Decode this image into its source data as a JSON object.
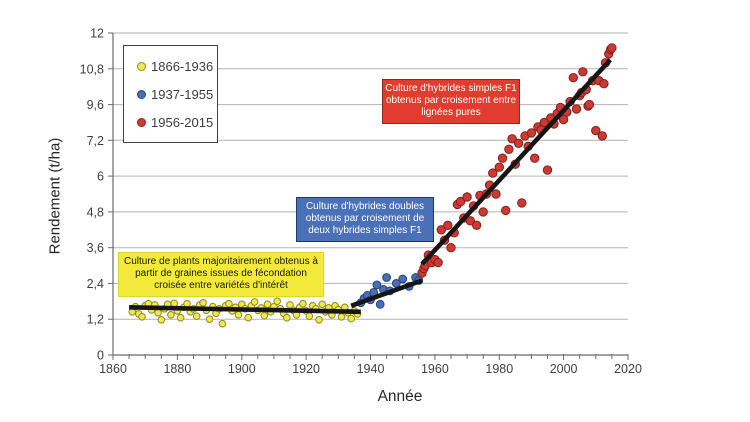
{
  "axes": {
    "x_title": "Année",
    "y_title": "Rendement (t/ha)",
    "x_tick_labels": [
      "1860",
      "1880",
      "1900",
      "1920",
      "1940",
      "1960",
      "1980",
      "2000",
      "2020"
    ],
    "y_tick_labels": [
      "0",
      "1,2",
      "2,4",
      "3,6",
      "4,8",
      "6",
      "7,2",
      "9,6",
      "10,8",
      "12"
    ]
  },
  "legend": {
    "items": [
      {
        "label": "1866-1936",
        "color": "#f1e84d",
        "stroke": "#8f8a26"
      },
      {
        "label": "1937-1955",
        "color": "#4a6db5",
        "stroke": "#26437e"
      },
      {
        "label": "1956-2015",
        "color": "#cc3a33",
        "stroke": "#82211d"
      }
    ]
  },
  "annotations": [
    {
      "id": "period-1866-1936",
      "text": "Culture de plants majoritairement obtenus à partir de graines issues de fécondation croisée entre variétés d'intérêt",
      "bg": "#f3e93b",
      "border": "#e2d729",
      "text_color": "#1a1a1a"
    },
    {
      "id": "period-1937-1955",
      "text": "Culture d'hybrides doubles obtenus par croisement de deux hybrides simples F1",
      "bg": "#4a70b8",
      "border": "#1f3864",
      "text_color": "#ffffff"
    },
    {
      "id": "period-1956-2015",
      "text": "Culture d'hybrides simples F1 obtenus par croisement entre lignées pures",
      "bg": "#e23b30",
      "border": "#952721",
      "text_color": "#ffffff"
    }
  ],
  "chart_data": {
    "type": "scatter",
    "title": "",
    "xlabel": "Année",
    "ylabel": "Rendement (t/ha)",
    "x_range": [
      1860,
      2020
    ],
    "x_minor_tick_step": 5,
    "y_axis_tick_values": [
      0,
      1.2,
      2.4,
      3.6,
      4.8,
      6,
      7.2,
      9.6,
      10.8,
      12
    ],
    "grid": "horizontal gridlines only",
    "legend_position": "top-left inside plot",
    "series": [
      {
        "name": "1866-1936",
        "color": "#f1e84d",
        "stroke": "#8f8a26",
        "radius": 3.3,
        "points": [
          [
            1866,
            1.45
          ],
          [
            1867,
            1.62
          ],
          [
            1868,
            1.38
          ],
          [
            1869,
            1.28
          ],
          [
            1870,
            1.65
          ],
          [
            1871,
            1.72
          ],
          [
            1872,
            1.51
          ],
          [
            1873,
            1.68
          ],
          [
            1874,
            1.42
          ],
          [
            1875,
            1.18
          ],
          [
            1876,
            1.55
          ],
          [
            1877,
            1.7
          ],
          [
            1878,
            1.35
          ],
          [
            1879,
            1.73
          ],
          [
            1880,
            1.48
          ],
          [
            1881,
            1.25
          ],
          [
            1882,
            1.6
          ],
          [
            1883,
            1.72
          ],
          [
            1884,
            1.45
          ],
          [
            1885,
            1.55
          ],
          [
            1886,
            1.3
          ],
          [
            1887,
            1.68
          ],
          [
            1888,
            1.75
          ],
          [
            1889,
            1.5
          ],
          [
            1890,
            1.2
          ],
          [
            1891,
            1.62
          ],
          [
            1892,
            1.4
          ],
          [
            1893,
            1.55
          ],
          [
            1894,
            1.05
          ],
          [
            1895,
            1.65
          ],
          [
            1896,
            1.72
          ],
          [
            1897,
            1.48
          ],
          [
            1898,
            1.6
          ],
          [
            1899,
            1.35
          ],
          [
            1900,
            1.7
          ],
          [
            1901,
            1.55
          ],
          [
            1902,
            1.25
          ],
          [
            1903,
            1.65
          ],
          [
            1904,
            1.78
          ],
          [
            1905,
            1.5
          ],
          [
            1906,
            1.58
          ],
          [
            1907,
            1.32
          ],
          [
            1908,
            1.7
          ],
          [
            1909,
            1.45
          ],
          [
            1910,
            1.62
          ],
          [
            1911,
            1.8
          ],
          [
            1912,
            1.55
          ],
          [
            1913,
            1.4
          ],
          [
            1914,
            1.25
          ],
          [
            1915,
            1.68
          ],
          [
            1916,
            1.5
          ],
          [
            1917,
            1.35
          ],
          [
            1918,
            1.6
          ],
          [
            1919,
            1.72
          ],
          [
            1920,
            1.48
          ],
          [
            1921,
            1.3
          ],
          [
            1922,
            1.65
          ],
          [
            1923,
            1.55
          ],
          [
            1924,
            1.18
          ],
          [
            1925,
            1.7
          ],
          [
            1926,
            1.45
          ],
          [
            1927,
            1.58
          ],
          [
            1928,
            1.35
          ],
          [
            1929,
            1.65
          ],
          [
            1930,
            1.52
          ],
          [
            1931,
            1.28
          ],
          [
            1932,
            1.6
          ],
          [
            1933,
            1.42
          ],
          [
            1934,
            1.22
          ],
          [
            1935,
            1.48
          ],
          [
            1936,
            1.38
          ]
        ]
      },
      {
        "name": "1937-1955",
        "color": "#4a6db5",
        "stroke": "#26437e",
        "radius": 3.9,
        "points": [
          [
            1937,
            1.75
          ],
          [
            1938,
            1.9
          ],
          [
            1939,
            2.0
          ],
          [
            1940,
            1.85
          ],
          [
            1941,
            2.1
          ],
          [
            1942,
            2.35
          ],
          [
            1943,
            1.7
          ],
          [
            1944,
            2.2
          ],
          [
            1945,
            2.6
          ],
          [
            1946,
            2.15
          ],
          [
            1948,
            2.4
          ],
          [
            1950,
            2.55
          ],
          [
            1952,
            2.3
          ],
          [
            1954,
            2.6
          ],
          [
            1955,
            2.5
          ]
        ]
      },
      {
        "name": "1956-2015",
        "color": "#cc3a33",
        "stroke": "#82211d",
        "radius": 4.2,
        "points": [
          [
            1956,
            2.75
          ],
          [
            1956.6,
            2.9
          ],
          [
            1957,
            3.0
          ],
          [
            1958,
            3.35
          ],
          [
            1959,
            3.1
          ],
          [
            1960,
            3.2
          ],
          [
            1961,
            3.1
          ],
          [
            1962,
            4.2
          ],
          [
            1963,
            3.85
          ],
          [
            1964,
            4.35
          ],
          [
            1965,
            3.6
          ],
          [
            1966,
            4.1
          ],
          [
            1967,
            5.05
          ],
          [
            1968,
            5.15
          ],
          [
            1969,
            4.6
          ],
          [
            1970,
            5.3
          ],
          [
            1971,
            4.5
          ],
          [
            1972,
            5.0
          ],
          [
            1973,
            4.35
          ],
          [
            1974,
            5.35
          ],
          [
            1975,
            4.8
          ],
          [
            1976,
            5.4
          ],
          [
            1977,
            5.7
          ],
          [
            1978,
            6.1
          ],
          [
            1979,
            5.4
          ],
          [
            1980,
            6.3
          ],
          [
            1981,
            6.6
          ],
          [
            1982,
            4.85
          ],
          [
            1983,
            6.9
          ],
          [
            1984,
            7.3
          ],
          [
            1985,
            6.4
          ],
          [
            1986,
            7.1
          ],
          [
            1987,
            5.1
          ],
          [
            1988,
            7.5
          ],
          [
            1989,
            7.0
          ],
          [
            1990,
            7.7
          ],
          [
            1991,
            6.6
          ],
          [
            1992,
            8.1
          ],
          [
            1993,
            7.9
          ],
          [
            1994,
            8.4
          ],
          [
            1995,
            6.2
          ],
          [
            1996,
            8.7
          ],
          [
            1997,
            8.3
          ],
          [
            1998,
            9.0
          ],
          [
            1999,
            9.4
          ],
          [
            2000,
            8.6
          ],
          [
            2001,
            9.1
          ],
          [
            2002,
            9.7
          ],
          [
            2003,
            10.5
          ],
          [
            2004,
            9.3
          ],
          [
            2005,
            9.9
          ],
          [
            2005.6,
            10.0
          ],
          [
            2006,
            10.7
          ],
          [
            2007,
            10.1
          ],
          [
            2007.6,
            9.5
          ],
          [
            2008,
            9.6
          ],
          [
            2009,
            10.4
          ],
          [
            2010,
            7.85
          ],
          [
            2011,
            10.4
          ],
          [
            2012,
            7.5
          ],
          [
            2012.5,
            10.3
          ],
          [
            2013,
            11.0
          ],
          [
            2014,
            11.3
          ],
          [
            2014.6,
            11.45
          ],
          [
            2015,
            11.5
          ]
        ]
      }
    ],
    "trend_lines": [
      {
        "series": "1866-1936",
        "from": [
          1865,
          1.6
        ],
        "to": [
          1937,
          1.45
        ]
      },
      {
        "series": "1937-1955",
        "from": [
          1934,
          1.65
        ],
        "to": [
          1956,
          2.5
        ]
      },
      {
        "series": "1956-2015",
        "from": [
          1956,
          3.05
        ],
        "to": [
          2014.5,
          11.1
        ]
      }
    ]
  }
}
